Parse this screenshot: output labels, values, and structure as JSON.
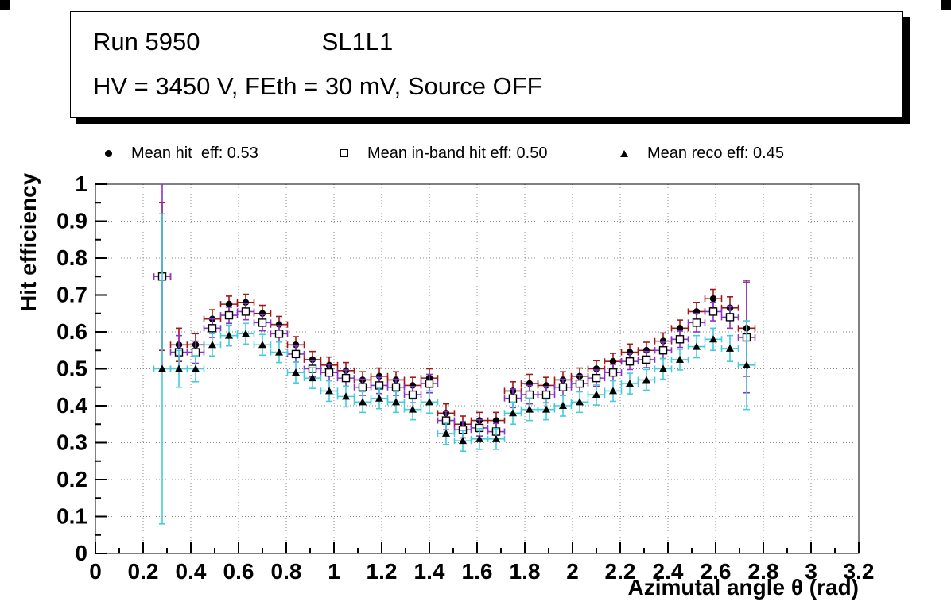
{
  "title_box": {
    "line1_left": "Run 5950",
    "line1_right": "SL1L1",
    "line2": "HV = 3450 V, FEth = 30 mV, Source OFF"
  },
  "legend": {
    "items": [
      {
        "icon": "filled-circle",
        "label": "Mean hit  eff: 0.53"
      },
      {
        "icon": "open-square",
        "label": "Mean in-band hit eff: 0.50"
      },
      {
        "icon": "filled-triangle",
        "label": "Mean reco eff: 0.45"
      }
    ]
  },
  "chart_data": {
    "type": "scatter",
    "title": "",
    "xlabel": "Azimutal angle θ (rad)",
    "ylabel": "Hit efficiency",
    "xlim": [
      0,
      3.2
    ],
    "ylim": [
      0,
      1
    ],
    "xtick_step": 0.2,
    "ytick_step": 0.1,
    "grid": true,
    "grid_style": "dotted",
    "x": [
      0.28,
      0.35,
      0.42,
      0.49,
      0.56,
      0.63,
      0.7,
      0.77,
      0.84,
      0.91,
      0.98,
      1.05,
      1.12,
      1.19,
      1.26,
      1.33,
      1.4,
      1.47,
      1.54,
      1.61,
      1.68,
      1.75,
      1.82,
      1.89,
      1.96,
      2.03,
      2.1,
      2.17,
      2.24,
      2.31,
      2.38,
      2.45,
      2.52,
      2.59,
      2.66,
      2.73
    ],
    "xerr": 0.035,
    "series": [
      {
        "name": "Mean hit eff",
        "mean": 0.53,
        "marker": "filled-circle",
        "marker_color": "#000000",
        "error_color": "#a01818",
        "y": [
          0.75,
          0.565,
          0.565,
          0.635,
          0.675,
          0.68,
          0.65,
          0.62,
          0.565,
          0.525,
          0.51,
          0.495,
          0.47,
          0.48,
          0.47,
          0.455,
          0.475,
          0.38,
          0.35,
          0.36,
          0.36,
          0.44,
          0.46,
          0.455,
          0.47,
          0.48,
          0.5,
          0.52,
          0.545,
          0.55,
          0.575,
          0.61,
          0.655,
          0.69,
          0.665,
          0.61
        ],
        "yerr": [
          0.2,
          0.045,
          0.03,
          0.025,
          0.022,
          0.022,
          0.022,
          0.022,
          0.022,
          0.022,
          0.022,
          0.022,
          0.022,
          0.022,
          0.022,
          0.022,
          0.025,
          0.025,
          0.022,
          0.022,
          0.022,
          0.025,
          0.025,
          0.022,
          0.022,
          0.022,
          0.022,
          0.022,
          0.022,
          0.022,
          0.022,
          0.022,
          0.025,
          0.025,
          0.03,
          0.13
        ]
      },
      {
        "name": "Mean in-band hit eff",
        "mean": 0.5,
        "marker": "open-square",
        "marker_color": "#000000",
        "error_color": "#8833cc",
        "y": [
          0.75,
          0.545,
          0.545,
          0.61,
          0.645,
          0.655,
          0.625,
          0.595,
          0.54,
          0.5,
          0.49,
          0.475,
          0.45,
          0.455,
          0.45,
          0.43,
          0.46,
          0.36,
          0.335,
          0.34,
          0.33,
          0.42,
          0.43,
          0.43,
          0.45,
          0.46,
          0.475,
          0.49,
          0.52,
          0.525,
          0.55,
          0.58,
          0.625,
          0.655,
          0.64,
          0.585
        ],
        "yerr": [
          0.25,
          0.045,
          0.03,
          0.025,
          0.022,
          0.022,
          0.022,
          0.022,
          0.022,
          0.022,
          0.022,
          0.022,
          0.022,
          0.022,
          0.022,
          0.022,
          0.025,
          0.025,
          0.022,
          0.022,
          0.022,
          0.025,
          0.025,
          0.022,
          0.022,
          0.022,
          0.022,
          0.022,
          0.022,
          0.022,
          0.022,
          0.022,
          0.025,
          0.025,
          0.03,
          0.15
        ]
      },
      {
        "name": "Mean reco eff",
        "mean": 0.45,
        "marker": "filled-triangle",
        "marker_color": "#000000",
        "error_color": "#44ccdd",
        "y": [
          0.5,
          0.5,
          0.5,
          0.565,
          0.59,
          0.595,
          0.565,
          0.545,
          0.49,
          0.475,
          0.44,
          0.425,
          0.41,
          0.42,
          0.41,
          0.39,
          0.41,
          0.325,
          0.305,
          0.31,
          0.31,
          0.38,
          0.39,
          0.39,
          0.4,
          0.41,
          0.43,
          0.44,
          0.46,
          0.47,
          0.5,
          0.525,
          0.56,
          0.58,
          0.555,
          0.51
        ],
        "yerr": [
          0.42,
          0.05,
          0.035,
          0.03,
          0.028,
          0.028,
          0.028,
          0.028,
          0.028,
          0.028,
          0.028,
          0.028,
          0.028,
          0.028,
          0.028,
          0.028,
          0.03,
          0.03,
          0.028,
          0.028,
          0.028,
          0.03,
          0.03,
          0.028,
          0.028,
          0.028,
          0.028,
          0.028,
          0.028,
          0.028,
          0.028,
          0.028,
          0.03,
          0.03,
          0.035,
          0.12
        ]
      }
    ]
  },
  "colors": {
    "frame": "#000000",
    "grid": "#888888",
    "background": "#ffffff"
  }
}
